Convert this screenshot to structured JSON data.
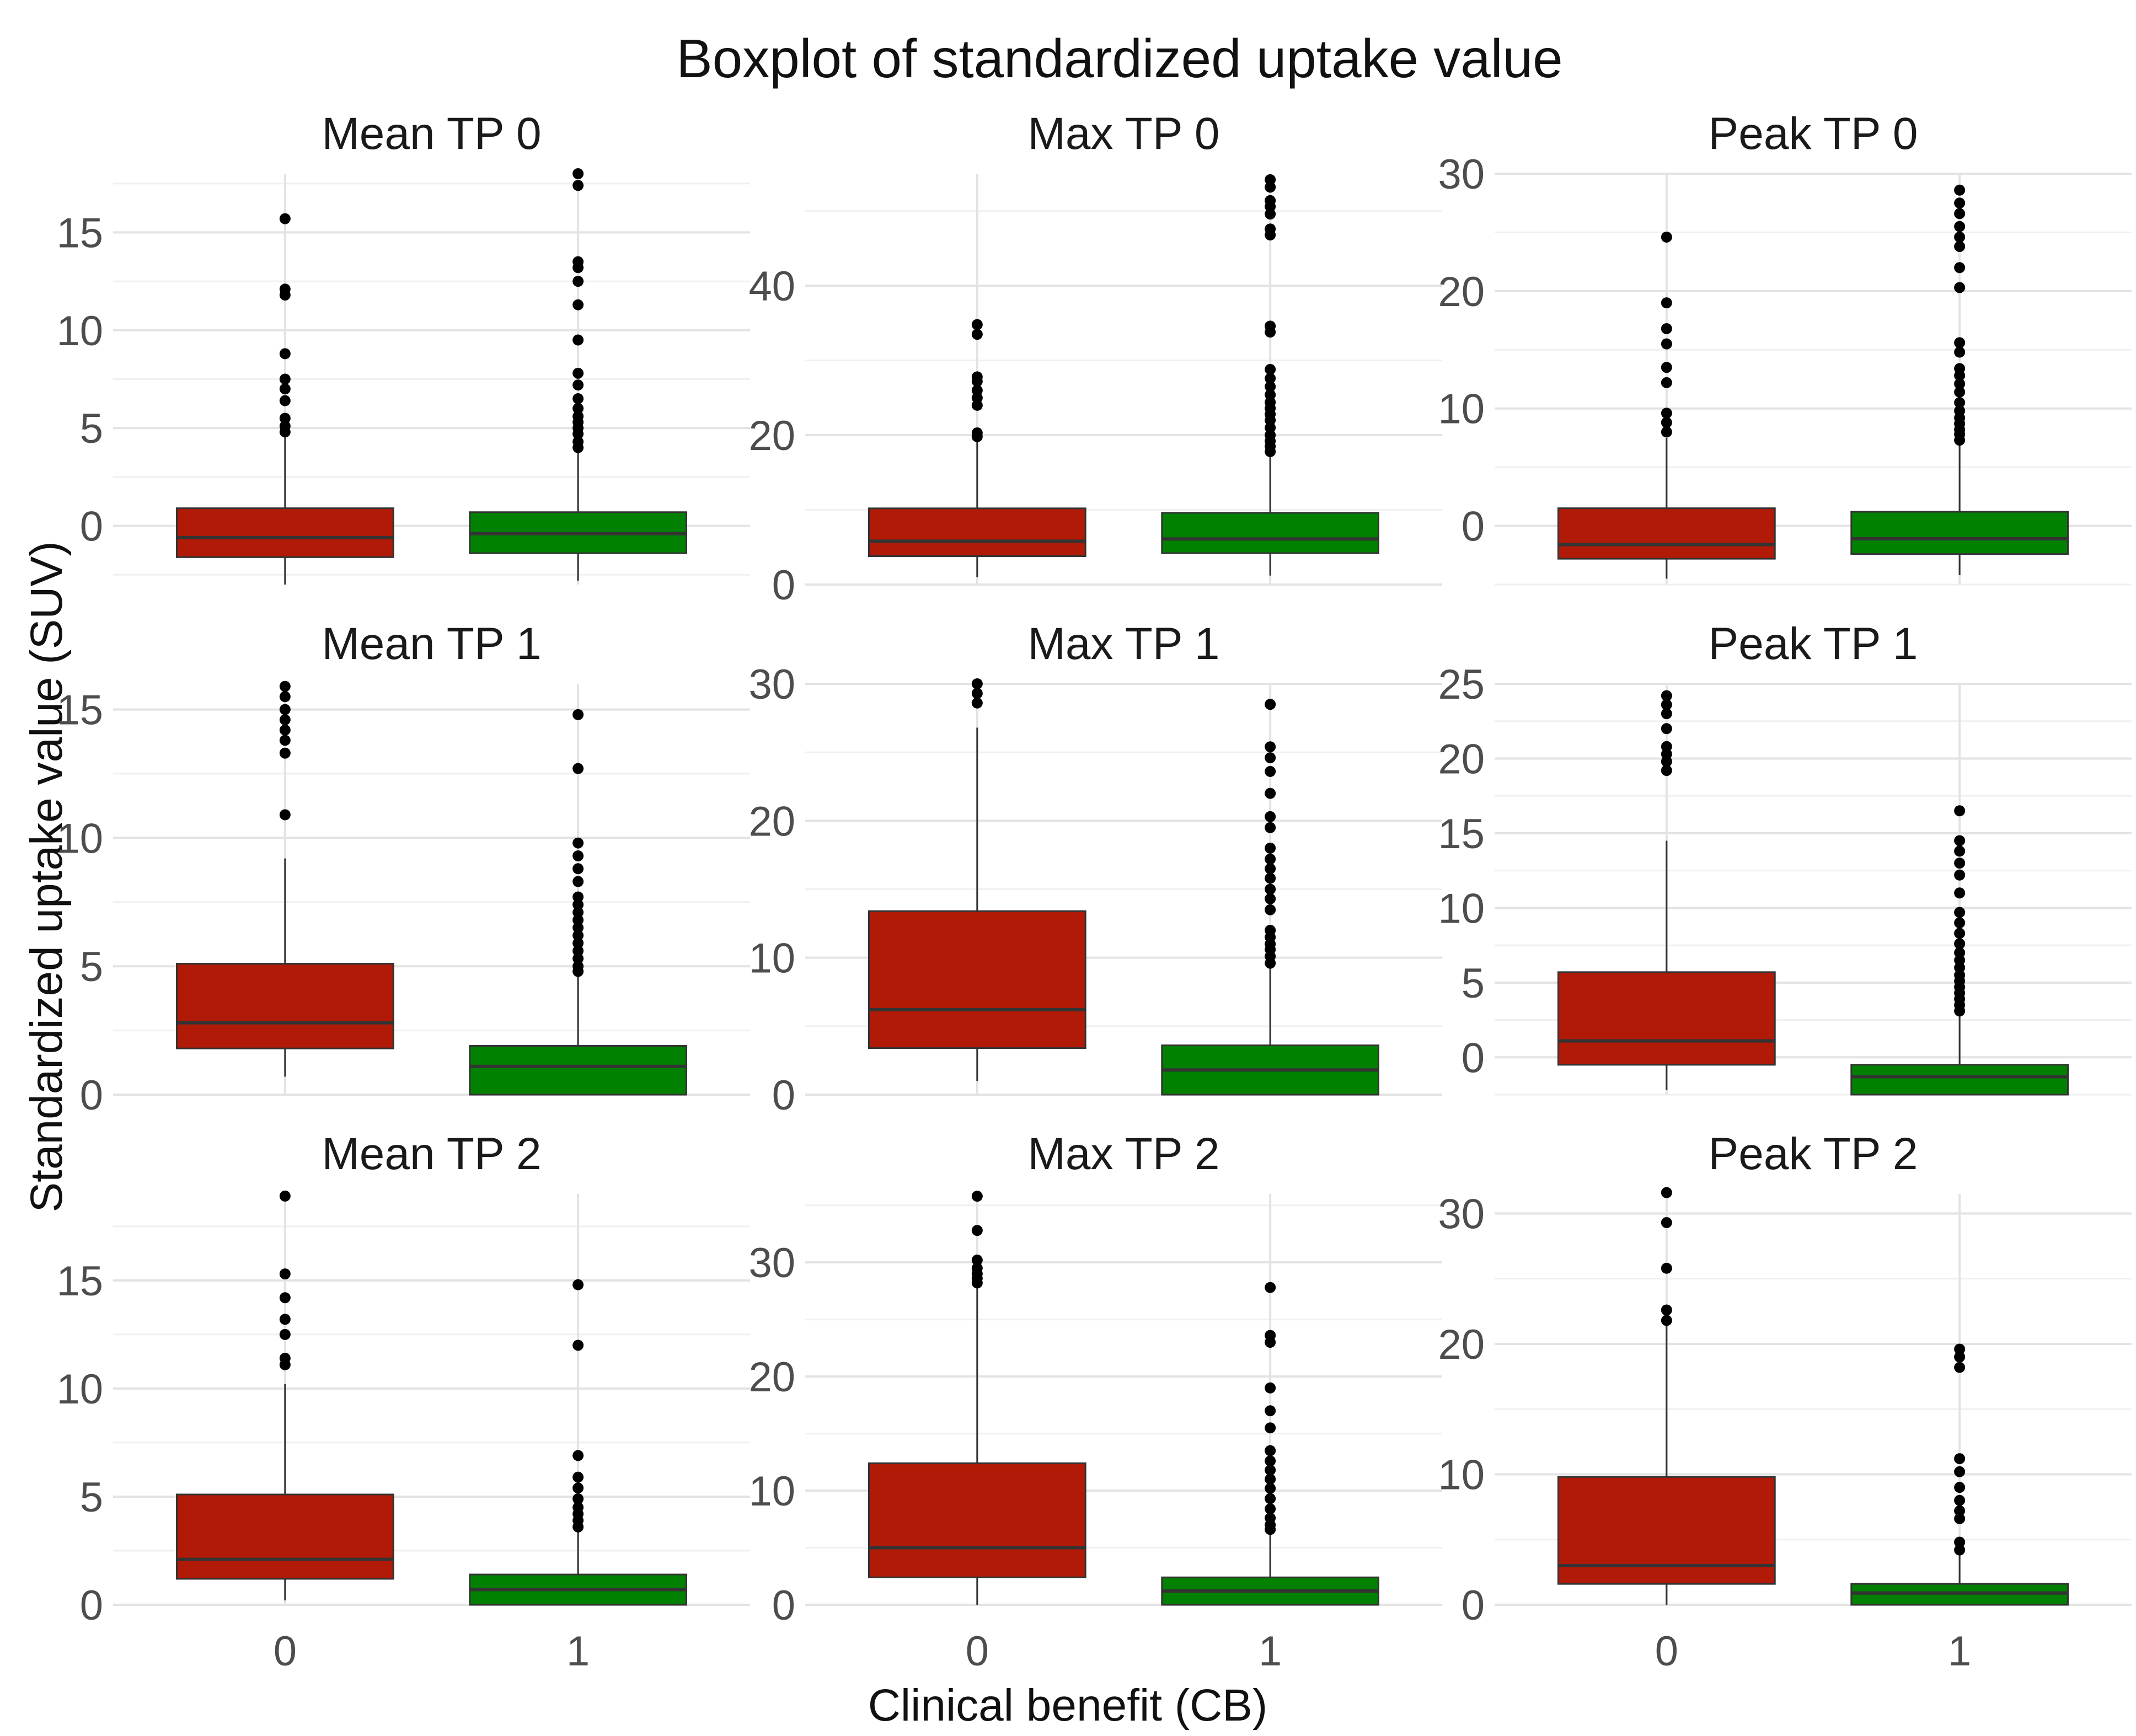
{
  "chart_data": {
    "type": "boxplot",
    "title": "Boxplot of standardized uptake value",
    "xlabel": "Clinical benefit (CB)",
    "ylabel": "Standardized uptake value (SUV)",
    "categories": [
      "0",
      "1"
    ],
    "legend": "none",
    "grid": true,
    "colors": {
      "0": "#b01a06",
      "1": "#028002",
      "median": "#333333",
      "whisker": "#333333",
      "outlier": "#000000"
    },
    "panels": [
      {
        "title": "Mean TP 0",
        "ylim": [
          -3,
          18
        ],
        "yticks": [
          0,
          5,
          10,
          15
        ],
        "boxes": [
          {
            "group": "0",
            "lower_whisker": -3,
            "q1": -1.6,
            "median": -0.6,
            "q3": 0.9,
            "upper_whisker": 4.6,
            "outliers": [
              4.8,
              5.1,
              5.5,
              6.4,
              7.0,
              7.5,
              8.8,
              11.8,
              12.1,
              15.7
            ]
          },
          {
            "group": "1",
            "lower_whisker": -2.8,
            "q1": -1.4,
            "median": -0.4,
            "q3": 0.7,
            "upper_whisker": 3.8,
            "outliers": [
              4.0,
              4.3,
              4.7,
              5.0,
              5.3,
              5.6,
              6.0,
              6.5,
              7.2,
              7.8,
              9.5,
              11.3,
              12.5,
              13.2,
              13.5,
              17.4,
              18.0
            ]
          }
        ]
      },
      {
        "title": "Max TP 0",
        "ylim": [
          0,
          55
        ],
        "yticks": [
          0,
          20,
          40
        ],
        "boxes": [
          {
            "group": "0",
            "lower_whisker": 1,
            "q1": 3.8,
            "median": 5.8,
            "q3": 10.2,
            "upper_whisker": 19.5,
            "outliers": [
              19.8,
              20.3,
              24.0,
              25.0,
              26.0,
              27.2,
              27.8,
              33.5,
              34.8
            ]
          },
          {
            "group": "1",
            "lower_whisker": 1.2,
            "q1": 4.2,
            "median": 6.1,
            "q3": 9.6,
            "upper_whisker": 17.5,
            "outliers": [
              17.8,
              18.5,
              19.2,
              20.0,
              21.0,
              22.0,
              22.8,
              23.6,
              24.4,
              25.4,
              26.5,
              27.6,
              28.8,
              33.8,
              34.6,
              46.8,
              47.6,
              49.6,
              50.6,
              51.4,
              53.2,
              54.2
            ]
          }
        ]
      },
      {
        "title": "Peak TP 0",
        "ylim": [
          -5,
          30
        ],
        "yticks": [
          0,
          10,
          20,
          30
        ],
        "boxes": [
          {
            "group": "0",
            "lower_whisker": -4.5,
            "q1": -2.8,
            "median": -1.6,
            "q3": 1.5,
            "upper_whisker": 7.5,
            "outliers": [
              8.0,
              8.8,
              9.6,
              12.2,
              13.5,
              15.5,
              16.8,
              19.0,
              24.6
            ]
          },
          {
            "group": "1",
            "lower_whisker": -4.2,
            "q1": -2.4,
            "median": -1.1,
            "q3": 1.2,
            "upper_whisker": 7.0,
            "outliers": [
              7.3,
              7.8,
              8.2,
              8.7,
              9.2,
              9.8,
              10.5,
              11.4,
              12.1,
              12.8,
              13.4,
              14.8,
              15.6,
              20.3,
              22.0,
              23.8,
              24.6,
              25.5,
              26.6,
              27.5,
              28.6
            ]
          }
        ]
      },
      {
        "title": "Mean TP 1",
        "ylim": [
          0,
          16
        ],
        "yticks": [
          0,
          5,
          10,
          15
        ],
        "boxes": [
          {
            "group": "0",
            "lower_whisker": 0.7,
            "q1": 1.8,
            "median": 2.8,
            "q3": 5.1,
            "upper_whisker": 9.2,
            "outliers": [
              10.9,
              13.3,
              13.8,
              14.2,
              14.6,
              15.0,
              15.5,
              15.9
            ]
          },
          {
            "group": "1",
            "lower_whisker": 0,
            "q1": 0,
            "median": 1.1,
            "q3": 1.9,
            "upper_whisker": 4.6,
            "outliers": [
              4.8,
              5.0,
              5.3,
              5.6,
              5.9,
              6.2,
              6.5,
              6.8,
              7.1,
              7.4,
              7.7,
              8.3,
              8.8,
              9.3,
              9.8,
              12.7,
              14.8
            ]
          }
        ]
      },
      {
        "title": "Max TP 1",
        "ylim": [
          0,
          30
        ],
        "yticks": [
          0,
          10,
          20,
          30
        ],
        "boxes": [
          {
            "group": "0",
            "lower_whisker": 1,
            "q1": 3.4,
            "median": 6.2,
            "q3": 13.4,
            "upper_whisker": 26.8,
            "outliers": [
              28.6,
              29.3,
              30.0
            ]
          },
          {
            "group": "1",
            "lower_whisker": 0,
            "q1": 0,
            "median": 1.8,
            "q3": 3.6,
            "upper_whisker": 9.3,
            "outliers": [
              9.6,
              10.1,
              10.6,
              11.0,
              11.5,
              12.0,
              13.5,
              14.3,
              15.0,
              15.8,
              16.5,
              17.2,
              18.0,
              19.5,
              20.3,
              22.0,
              23.6,
              24.6,
              25.4,
              28.5
            ]
          }
        ]
      },
      {
        "title": "Peak TP 1",
        "ylim": [
          -2.5,
          25
        ],
        "yticks": [
          0,
          5,
          10,
          15,
          20,
          25
        ],
        "boxes": [
          {
            "group": "0",
            "lower_whisker": -2.2,
            "q1": -0.5,
            "median": 1.1,
            "q3": 5.7,
            "upper_whisker": 14.5,
            "outliers": [
              19.2,
              19.8,
              20.3,
              20.8,
              22.0,
              23.0,
              23.6,
              24.2
            ]
          },
          {
            "group": "1",
            "lower_whisker": -2.5,
            "q1": -2.5,
            "median": -1.3,
            "q3": -0.5,
            "upper_whisker": 2.8,
            "outliers": [
              3.1,
              3.5,
              3.9,
              4.3,
              4.7,
              5.1,
              5.5,
              6.0,
              6.5,
              7.0,
              7.6,
              8.3,
              9.0,
              9.7,
              11.0,
              12.2,
              13.0,
              13.8,
              14.5,
              16.5
            ]
          }
        ]
      },
      {
        "title": "Mean TP 2",
        "ylim": [
          0,
          19
        ],
        "yticks": [
          0,
          5,
          10,
          15
        ],
        "boxes": [
          {
            "group": "0",
            "lower_whisker": 0.2,
            "q1": 1.2,
            "median": 2.1,
            "q3": 5.1,
            "upper_whisker": 10.2,
            "outliers": [
              11.1,
              11.4,
              12.5,
              13.2,
              14.2,
              15.3,
              18.9
            ]
          },
          {
            "group": "1",
            "lower_whisker": 0,
            "q1": 0,
            "median": 0.7,
            "q3": 1.4,
            "upper_whisker": 3.4,
            "outliers": [
              3.6,
              3.9,
              4.2,
              4.5,
              4.9,
              5.4,
              5.9,
              6.9,
              12.0,
              14.8
            ]
          }
        ]
      },
      {
        "title": "Max TP 2",
        "ylim": [
          0,
          36
        ],
        "yticks": [
          0,
          10,
          20,
          30
        ],
        "boxes": [
          {
            "group": "0",
            "lower_whisker": 0,
            "q1": 2.4,
            "median": 5.0,
            "q3": 12.4,
            "upper_whisker": 27.8,
            "outliers": [
              28.2,
              28.6,
              29.0,
              29.5,
              30.2,
              32.8,
              35.8
            ]
          },
          {
            "group": "1",
            "lower_whisker": 0,
            "q1": 0,
            "median": 1.2,
            "q3": 2.4,
            "upper_whisker": 6.4,
            "outliers": [
              6.6,
              7.0,
              7.6,
              8.4,
              9.3,
              10.2,
              11.0,
              11.8,
              12.6,
              13.5,
              15.5,
              17.0,
              19.0,
              23.0,
              23.6,
              27.8
            ]
          }
        ]
      },
      {
        "title": "Peak TP 2",
        "ylim": [
          0,
          31.5
        ],
        "yticks": [
          0,
          10,
          20,
          30
        ],
        "boxes": [
          {
            "group": "0",
            "lower_whisker": 0,
            "q1": 1.6,
            "median": 3.0,
            "q3": 9.8,
            "upper_whisker": 21.4,
            "outliers": [
              21.8,
              22.6,
              25.8,
              29.3,
              31.6
            ]
          },
          {
            "group": "1",
            "lower_whisker": 0,
            "q1": 0,
            "median": 0.9,
            "q3": 1.6,
            "upper_whisker": 3.8,
            "outliers": [
              4.2,
              4.8,
              6.6,
              7.2,
              8.0,
              9.0,
              10.2,
              11.2,
              18.2,
              19.0,
              19.6
            ]
          }
        ]
      }
    ]
  }
}
